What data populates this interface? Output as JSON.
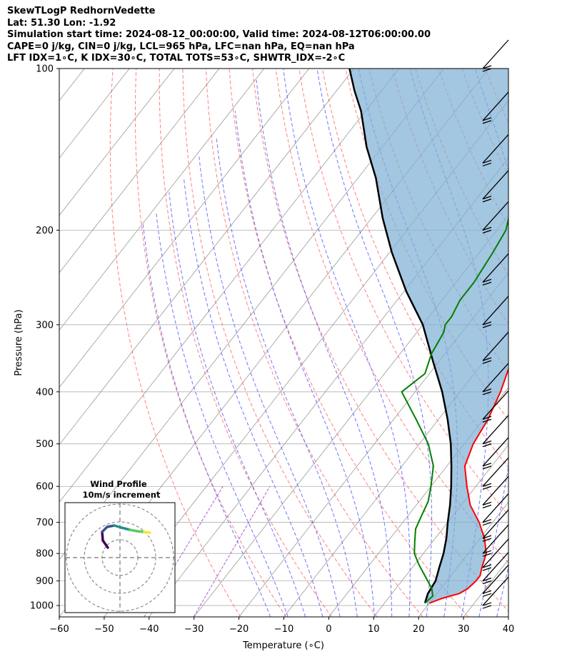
{
  "header": {
    "line1": "SkewTLogP RedhornVedette",
    "line2": "Lat: 51.30   Lon: -1.92",
    "line3": "Simulation start time: 2024-08-12_00:00:00, Valid time: 2024-08-12T06:00:00.00",
    "line4": "CAPE=0 j/kg, CIN=0 j/kg, LCL=965 hPa, LFC=nan hPa, EQ=nan hPa",
    "line5": "LFT IDX=1∘C, K IDX=30∘C, TOTAL TOTS=53∘C, SHWTR_IDX=-2∘C"
  },
  "chart_data": {
    "type": "line",
    "subtype": "skew-T log-P",
    "xlabel": "Temperature (∘C)",
    "ylabel": "Pressure (hPa)",
    "xlim": [
      -60,
      40
    ],
    "ylim": [
      1050,
      100
    ],
    "yscale": "log",
    "xticks": [
      "−60",
      "−50",
      "−40",
      "−30",
      "−20",
      "−10",
      "0",
      "10",
      "20",
      "30",
      "40"
    ],
    "yticks": [
      "100",
      "200",
      "300",
      "400",
      "500",
      "600",
      "700",
      "800",
      "900",
      "1000"
    ],
    "grid": true,
    "colors": {
      "temperature": "#ff0000",
      "dewpoint": "#008000",
      "parcel": "#000000",
      "fill": "#7fb0d6",
      "dry_adiabat": "#ff5555",
      "moist_adiabat": "#4444ff",
      "mixing_ratio": "#9933cc",
      "isotherm": "#999999"
    },
    "series": [
      {
        "role": "temperature",
        "points": [
          [
            20,
            990
          ],
          [
            22,
            970
          ],
          [
            25,
            950
          ],
          [
            26,
            930
          ],
          [
            26.5,
            900
          ],
          [
            26.5,
            880
          ],
          [
            25.5,
            850
          ],
          [
            24,
            800
          ],
          [
            21,
            750
          ],
          [
            17,
            700
          ],
          [
            12,
            650
          ],
          [
            8,
            600
          ],
          [
            4,
            550
          ],
          [
            2,
            500
          ],
          [
            1,
            450
          ],
          [
            -1,
            400
          ],
          [
            -4,
            350
          ],
          [
            -7,
            300
          ],
          [
            -10,
            270
          ],
          [
            -14,
            240
          ],
          [
            -17,
            215
          ],
          [
            -18,
            200
          ],
          [
            -18,
            185
          ],
          [
            -16,
            170
          ],
          [
            -14,
            150
          ],
          [
            -12,
            135
          ],
          [
            -11,
            120
          ],
          [
            -11,
            110
          ],
          [
            -11,
            100
          ]
        ]
      },
      {
        "role": "dewpoint",
        "points": [
          [
            19,
            990
          ],
          [
            19.5,
            960
          ],
          [
            18,
            930
          ],
          [
            15,
            890
          ],
          [
            11,
            840
          ],
          [
            8,
            800
          ],
          [
            6,
            760
          ],
          [
            4,
            720
          ],
          [
            3,
            680
          ],
          [
            2,
            640
          ],
          [
            0,
            600
          ],
          [
            -3,
            550
          ],
          [
            -8,
            500
          ],
          [
            -15,
            450
          ],
          [
            -23,
            400
          ],
          [
            -21,
            370
          ],
          [
            -23,
            340
          ],
          [
            -24,
            310
          ],
          [
            -25,
            300
          ],
          [
            -25,
            290
          ],
          [
            -26,
            270
          ],
          [
            -26,
            250
          ],
          [
            -27,
            220
          ],
          [
            -28,
            200
          ],
          [
            -31,
            180
          ],
          [
            -34,
            165
          ],
          [
            -38,
            150
          ],
          [
            -40,
            140
          ],
          [
            -37,
            130
          ],
          [
            -34,
            120
          ],
          [
            -30,
            110
          ],
          [
            -28,
            100
          ]
        ]
      },
      {
        "role": "parcel",
        "points": [
          [
            19,
            990
          ],
          [
            18,
            950
          ],
          [
            17.5,
            900
          ],
          [
            16,
            850
          ],
          [
            14.5,
            800
          ],
          [
            12.5,
            750
          ],
          [
            10,
            700
          ],
          [
            7.5,
            650
          ],
          [
            4.5,
            600
          ],
          [
            1,
            550
          ],
          [
            -3,
            500
          ],
          [
            -8,
            450
          ],
          [
            -14,
            400
          ],
          [
            -21.5,
            350
          ],
          [
            -30,
            300
          ],
          [
            -39.5,
            260
          ],
          [
            -49.5,
            220
          ],
          [
            -57.5,
            190
          ],
          [
            -66,
            160
          ],
          [
            -73.5,
            140
          ],
          [
            -81,
            120
          ],
          [
            -86,
            110
          ],
          [
            -91,
            100
          ]
        ]
      }
    ],
    "wind_barbs": {
      "pressures": [
        1000,
        950,
        900,
        850,
        800,
        750,
        700,
        650,
        600,
        550,
        500,
        450,
        400,
        350,
        300,
        250,
        200,
        175,
        150,
        125,
        100
      ]
    },
    "hodograph": {
      "title": "Wind Profile",
      "subtitle": "10m/s increment",
      "rings": 3,
      "trace_colors": [
        "#440154",
        "#3b528b",
        "#21918c",
        "#5ec962",
        "#fde725"
      ]
    }
  }
}
